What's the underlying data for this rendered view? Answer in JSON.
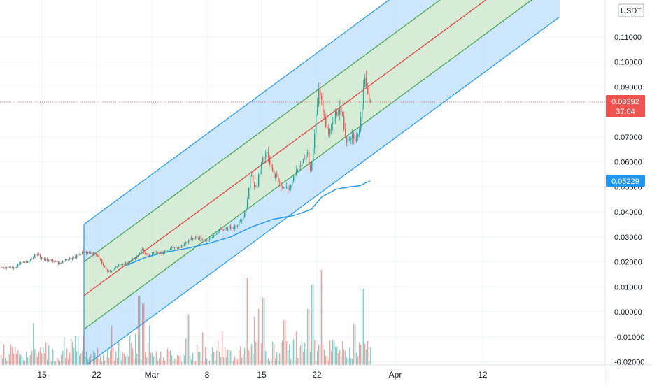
{
  "chart_data": {
    "type": "candlestick",
    "currency": "USDT",
    "y_ticks": [
      0.11,
      0.1,
      0.09,
      0.07,
      0.06,
      0.05,
      0.04,
      0.03,
      0.02,
      0.01,
      0.0,
      -0.01,
      -0.02
    ],
    "y_tick_labels": [
      "0.11000",
      "0.10000",
      "0.09000",
      "0.07000",
      "0.06000",
      "0.05000",
      "0.04000",
      "0.03000",
      "0.02000",
      "0.01000",
      "0.00000",
      "-0.01000",
      "-0.02000"
    ],
    "x_tick_labels": [
      "15",
      "22",
      "Mar",
      "8",
      "15",
      "22",
      "Apr",
      "12"
    ],
    "last_price": {
      "label": "0.08392",
      "value": 0.08392,
      "countdown": "37:04",
      "color": "#ef5350"
    },
    "ma_price": {
      "label": "0.05229",
      "value": 0.05229,
      "color": "#2196f3"
    },
    "price_path": [
      [
        0,
        0.018
      ],
      [
        18,
        0.0175
      ],
      [
        30,
        0.0195
      ],
      [
        40,
        0.02
      ],
      [
        52,
        0.0235
      ],
      [
        60,
        0.021
      ],
      [
        72,
        0.0205
      ],
      [
        85,
        0.0195
      ],
      [
        95,
        0.021
      ],
      [
        105,
        0.0215
      ],
      [
        118,
        0.024
      ],
      [
        128,
        0.0235
      ],
      [
        140,
        0.022
      ],
      [
        150,
        0.017
      ],
      [
        158,
        0.016
      ],
      [
        168,
        0.0185
      ],
      [
        180,
        0.0195
      ],
      [
        192,
        0.0215
      ],
      [
        202,
        0.025
      ],
      [
        212,
        0.0225
      ],
      [
        222,
        0.024
      ],
      [
        232,
        0.0235
      ],
      [
        245,
        0.0255
      ],
      [
        258,
        0.026
      ],
      [
        268,
        0.0285
      ],
      [
        278,
        0.03
      ],
      [
        288,
        0.029
      ],
      [
        298,
        0.0285
      ],
      [
        310,
        0.032
      ],
      [
        322,
        0.0335
      ],
      [
        334,
        0.034
      ],
      [
        344,
        0.0365
      ],
      [
        352,
        0.043
      ],
      [
        358,
        0.056
      ],
      [
        365,
        0.049
      ],
      [
        372,
        0.058
      ],
      [
        380,
        0.064
      ],
      [
        388,
        0.056
      ],
      [
        396,
        0.053
      ],
      [
        405,
        0.049
      ],
      [
        414,
        0.05
      ],
      [
        422,
        0.056
      ],
      [
        430,
        0.059
      ],
      [
        438,
        0.064
      ],
      [
        444,
        0.056
      ],
      [
        450,
        0.075
      ],
      [
        456,
        0.09
      ],
      [
        462,
        0.078
      ],
      [
        470,
        0.071
      ],
      [
        478,
        0.078
      ],
      [
        486,
        0.082
      ],
      [
        494,
        0.069
      ],
      [
        502,
        0.071
      ],
      [
        510,
        0.069
      ],
      [
        516,
        0.078
      ],
      [
        521,
        0.095
      ],
      [
        525,
        0.088
      ],
      [
        529,
        0.0839
      ]
    ],
    "ma_path": [
      [
        180,
        0.0185
      ],
      [
        210,
        0.022
      ],
      [
        240,
        0.024
      ],
      [
        270,
        0.0255
      ],
      [
        300,
        0.0275
      ],
      [
        330,
        0.03
      ],
      [
        360,
        0.034
      ],
      [
        390,
        0.037
      ],
      [
        420,
        0.0385
      ],
      [
        445,
        0.041
      ],
      [
        460,
        0.046
      ],
      [
        480,
        0.049
      ],
      [
        500,
        0.05
      ],
      [
        515,
        0.0505
      ],
      [
        522,
        0.0515
      ],
      [
        529,
        0.0523
      ]
    ],
    "channel": {
      "start_x": 120,
      "end_x": 800,
      "start_center": 0.0065,
      "end_center": 0.1465,
      "inner_offset": 0.0135,
      "outer_offset": 0.0285
    }
  },
  "colors": {
    "up": "#26a69a",
    "down": "#ef5350",
    "channel_mid": "#e53935",
    "channel_inner": "#43a047",
    "channel_outer": "#2196f3",
    "fill_inner": "#c8e6c9",
    "fill_outer": "#bbdefb",
    "ma": "#2196f3",
    "grid": "#f0f3fa"
  }
}
